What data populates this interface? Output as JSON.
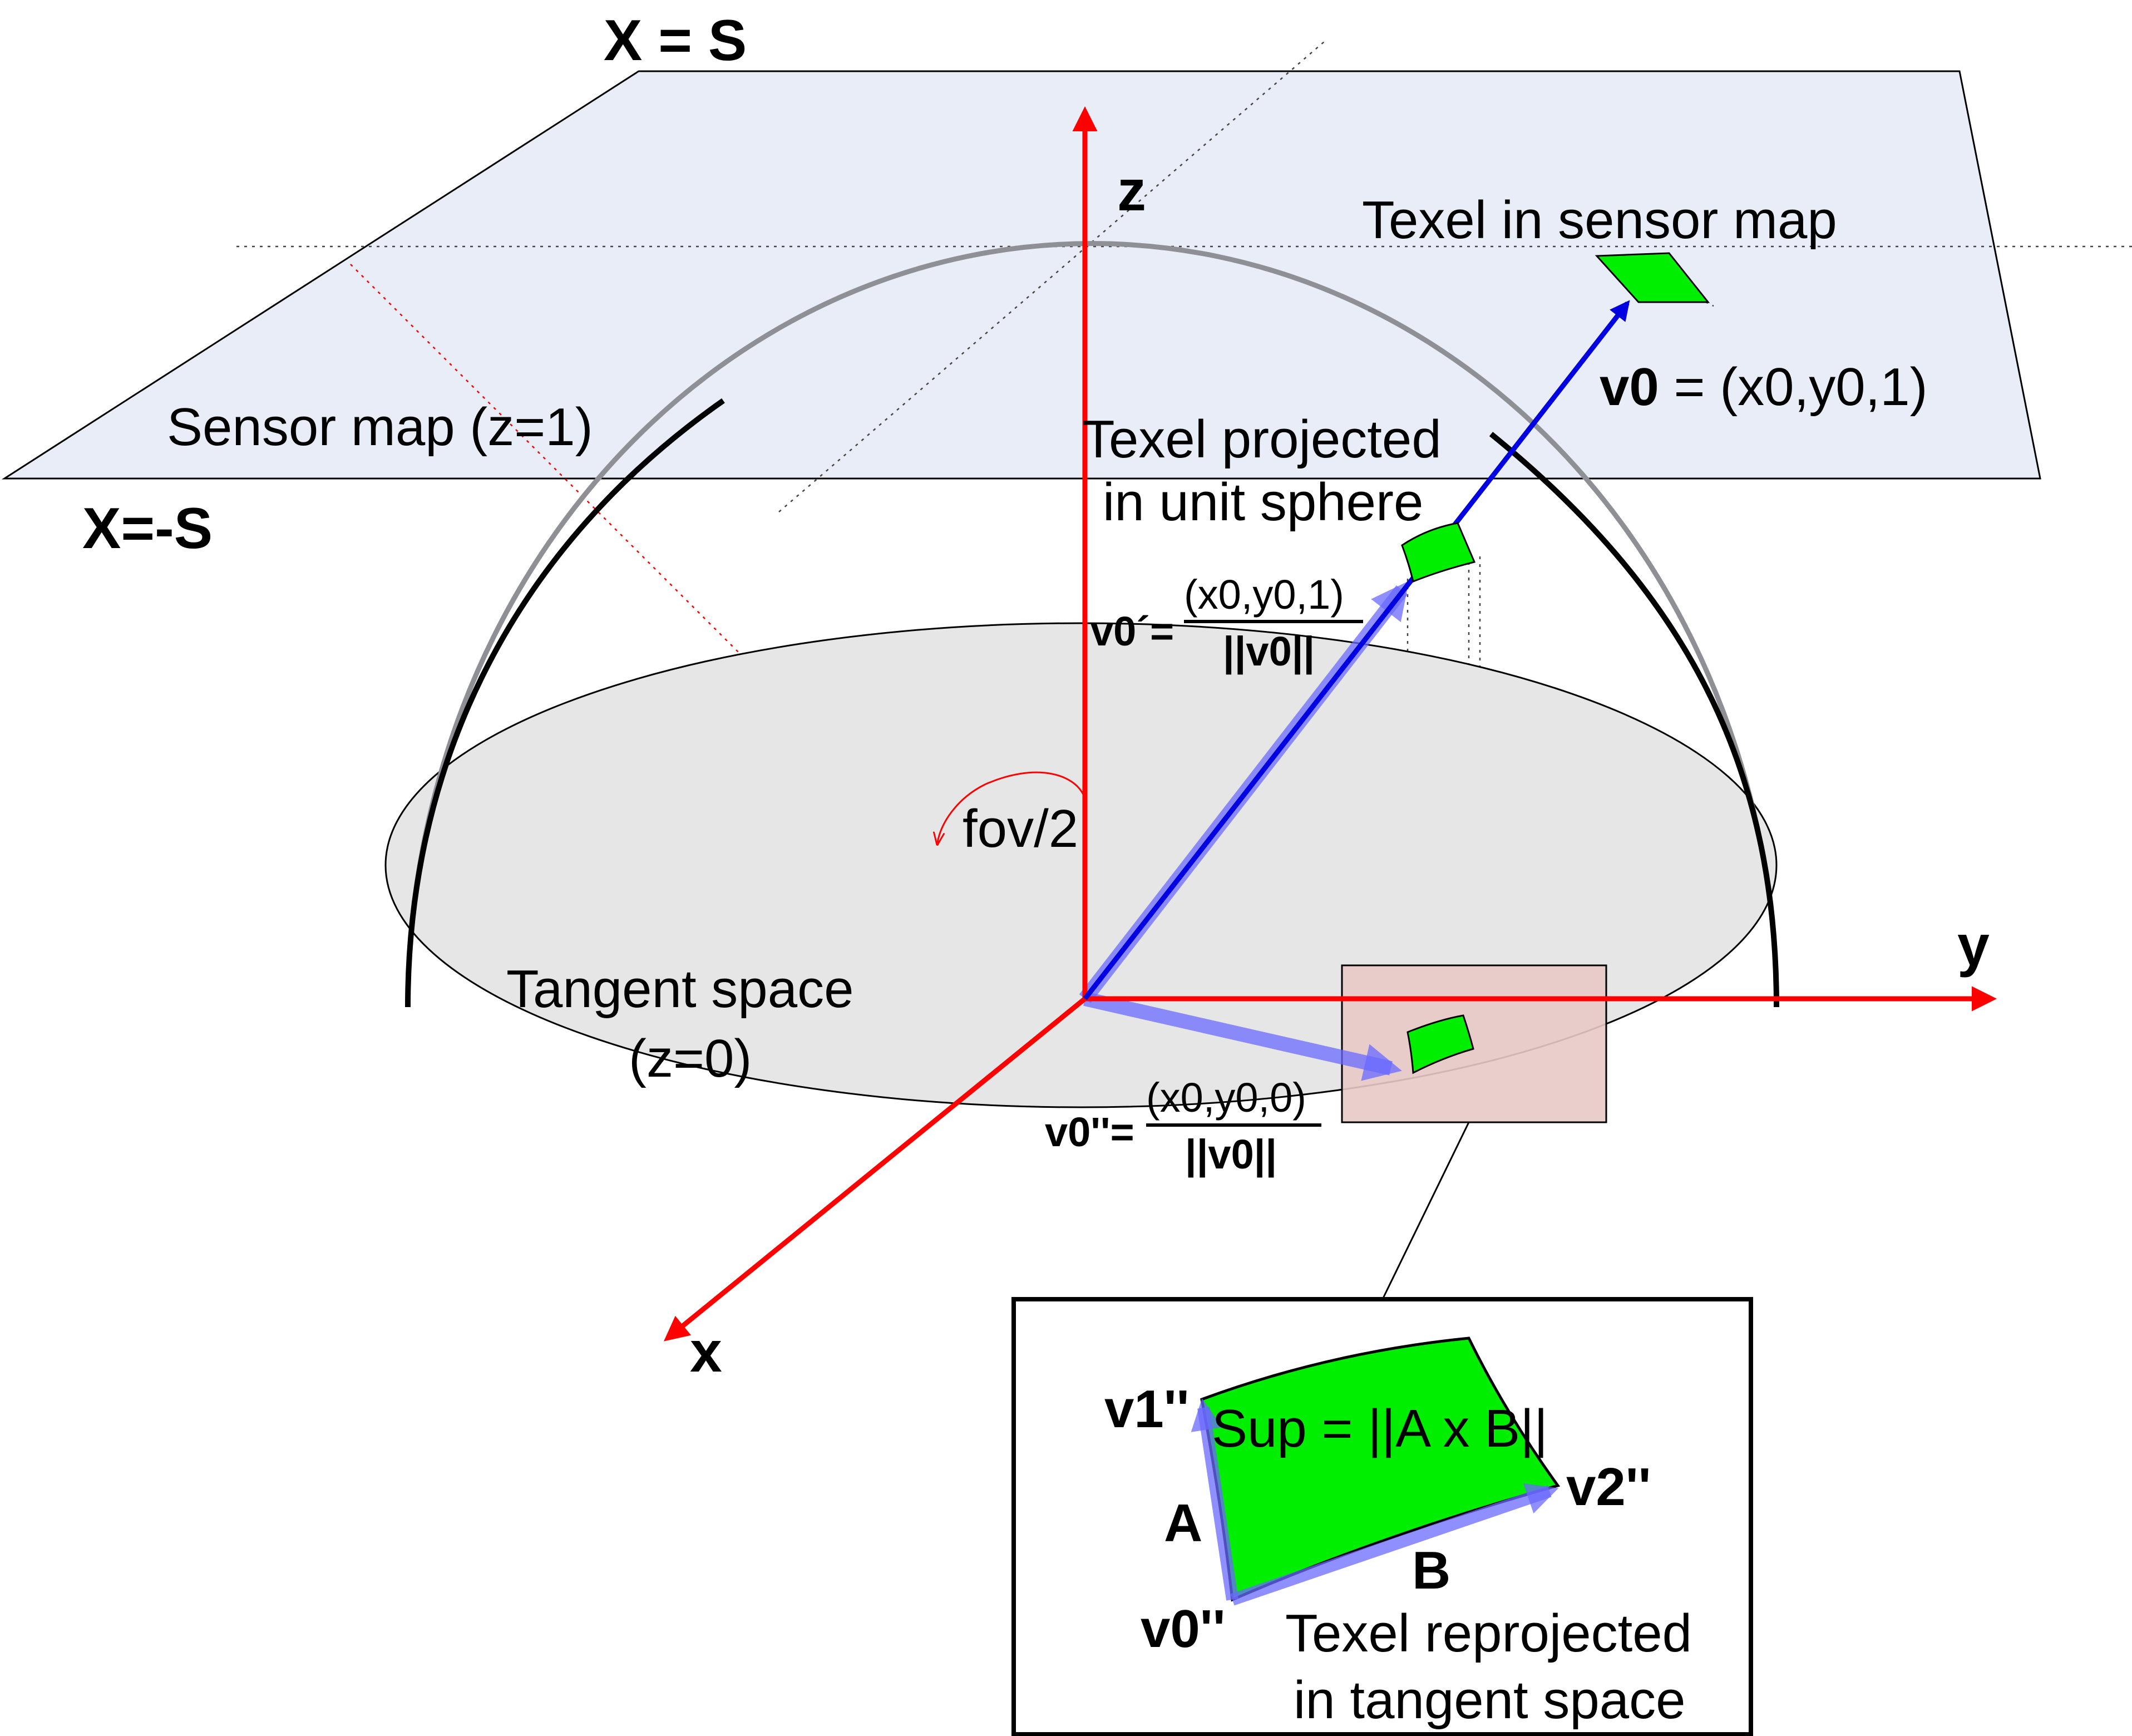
{
  "labels": {
    "x_eq_s": "X = S",
    "x_eq_neg_s": "X=-S",
    "z_axis": "z",
    "y_axis": "y",
    "x_axis": "x",
    "sensor_map": "Sensor map (z=1)",
    "texel_in_sensor_map": "Texel in sensor map",
    "v0_bold": "v0",
    "v0_rest": " = (x0,y0,1)",
    "texel_projected_line1": "Texel projected",
    "texel_projected_line2": "in unit sphere",
    "v0_prime_lhs": "v0´=",
    "v0_prime_num": "(x0,y0,1)",
    "v0_prime_den": "||v0||",
    "fov": "fov/2",
    "tangent_space_line1": "Tangent space",
    "tangent_space_line2": "(z=0)",
    "v0_dprime_lhs": "v0''=",
    "v0_dprime_num": "(x0,y0,0)",
    "v0_dprime_den": "||v0||"
  },
  "inset": {
    "v1": "v1''",
    "v2": "v2''",
    "v0": "v0''",
    "a": "A",
    "b": "B",
    "sup_formula": "Sup = ||A x B||",
    "caption_line1": "Texel reprojected",
    "caption_line2": "in tangent space"
  },
  "colors": {
    "axis": "#ff0000",
    "vector": "#0000e0",
    "projected_vector": "#6a6aff",
    "texel": "#00ee00",
    "sensor_plane": "#e8edf7",
    "tangent_disc": "#e6e6e6",
    "dome": "#8f8f96",
    "highlight_box": "#e7c9c5"
  }
}
